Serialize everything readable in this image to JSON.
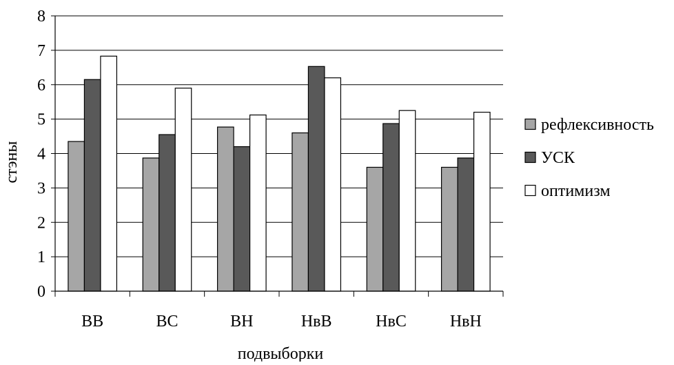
{
  "chart_data": {
    "type": "bar",
    "title": "",
    "xlabel": "подвыборки",
    "ylabel": "стэны",
    "ylim": [
      0,
      8
    ],
    "yticks": [
      0,
      1,
      2,
      3,
      4,
      5,
      6,
      7,
      8
    ],
    "grid": true,
    "legend_position": "right",
    "categories": [
      "ВВ",
      "ВС",
      "ВН",
      "НвВ",
      "НвС",
      "НвН"
    ],
    "series": [
      {
        "name": "рефлексивность",
        "color": "#a6a6a6",
        "values": [
          4.35,
          3.87,
          4.77,
          4.6,
          3.6,
          3.6
        ]
      },
      {
        "name": "УСК",
        "color": "#595959",
        "values": [
          6.15,
          4.55,
          4.2,
          6.53,
          4.87,
          3.87
        ]
      },
      {
        "name": "оптимизм",
        "color": "#ffffff",
        "values": [
          6.83,
          5.9,
          5.12,
          6.2,
          5.25,
          5.2
        ]
      }
    ]
  }
}
